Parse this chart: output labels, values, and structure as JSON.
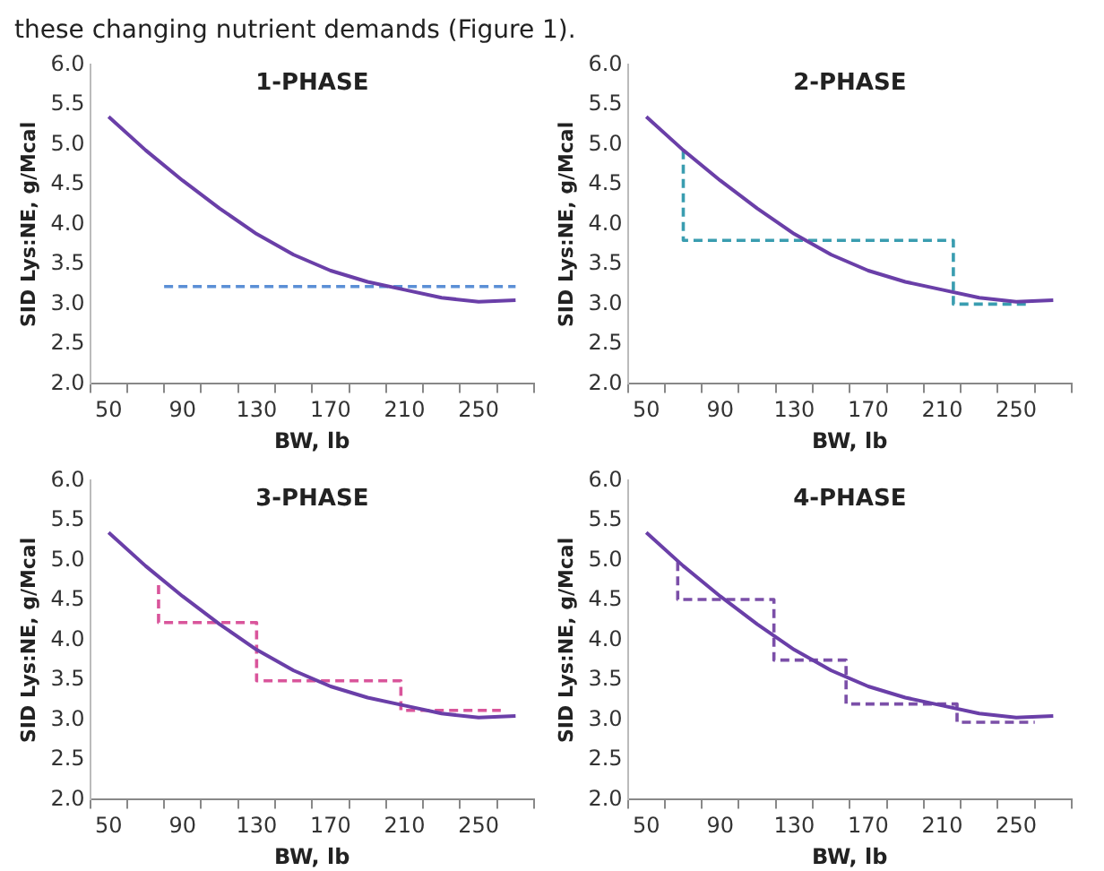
{
  "chart_data": [
    {
      "type": "line",
      "title": "1-PHASE",
      "xlabel": "BW, lb",
      "ylabel": "SID Lys:NE, g/Mcal",
      "annotations": [
        "these changing nutrient demands (Figure 1)."
      ],
      "xlim": [
        40,
        280
      ],
      "xticks": [
        {
          "value": 40,
          "label": null
        },
        50,
        {
          "value": 60,
          "label": null
        },
        {
          "value": 80,
          "label": null
        },
        90,
        {
          "value": 100,
          "label": null
        },
        {
          "value": 120,
          "label": null
        },
        130,
        {
          "value": 140,
          "label": null
        },
        {
          "value": 160,
          "label": null
        },
        170,
        {
          "value": 180,
          "label": null
        },
        {
          "value": 200,
          "label": null
        },
        210,
        {
          "value": 220,
          "label": null
        },
        {
          "value": 240,
          "label": null
        },
        250,
        {
          "value": 260,
          "label": null
        },
        {
          "value": 280,
          "label": null
        }
      ],
      "ylim": [
        2,
        6
      ],
      "yticks": [
        {
          "value": 2,
          "label": "2.0"
        },
        {
          "value": 2.5,
          "label": "2.5"
        },
        {
          "value": 3,
          "label": "3.0"
        },
        {
          "value": 3.5,
          "label": "3.5"
        },
        {
          "value": 4,
          "label": "4.0"
        },
        {
          "value": 4.5,
          "label": "4.5"
        },
        {
          "value": 5,
          "label": "5.0"
        },
        {
          "value": 5.5,
          "label": "5.5"
        },
        {
          "value": 6,
          "label": "6.0"
        }
      ],
      "grid": false,
      "marker": "none",
      "series": [
        {
          "color": "#6a3fa8",
          "line_style": "solid",
          "x": [
            50,
            70,
            90,
            110,
            130,
            150,
            170,
            190,
            210,
            230,
            250,
            270
          ],
          "values": [
            5.35,
            4.93,
            4.55,
            4.2,
            3.88,
            3.62,
            3.42,
            3.28,
            3.18,
            3.08,
            3.03,
            3.05
          ]
        },
        {
          "color": "#5b8fd6",
          "line_style": "dashed",
          "x": [
            80,
            270
          ],
          "values": [
            3.22,
            3.22
          ]
        }
      ]
    },
    {
      "type": "line",
      "title": "2-PHASE",
      "xlabel": "BW, lb",
      "ylabel": "SID Lys:NE, g/Mcal",
      "xlim": [
        40,
        280
      ],
      "xticks": [
        {
          "value": 40,
          "label": null
        },
        50,
        {
          "value": 60,
          "label": null
        },
        {
          "value": 80,
          "label": null
        },
        90,
        {
          "value": 100,
          "label": null
        },
        {
          "value": 120,
          "label": null
        },
        130,
        {
          "value": 140,
          "label": null
        },
        {
          "value": 160,
          "label": null
        },
        170,
        {
          "value": 180,
          "label": null
        },
        {
          "value": 200,
          "label": null
        },
        210,
        {
          "value": 220,
          "label": null
        },
        {
          "value": 240,
          "label": null
        },
        250,
        {
          "value": 260,
          "label": null
        },
        {
          "value": 280,
          "label": null
        }
      ],
      "ylim": [
        2,
        6
      ],
      "yticks": [
        {
          "value": 2,
          "label": "2.0"
        },
        {
          "value": 2.5,
          "label": "2.5"
        },
        {
          "value": 3,
          "label": "3.0"
        },
        {
          "value": 3.5,
          "label": "3.5"
        },
        {
          "value": 4,
          "label": "4.0"
        },
        {
          "value": 4.5,
          "label": "4.5"
        },
        {
          "value": 5,
          "label": "5.0"
        },
        {
          "value": 5.5,
          "label": "5.5"
        },
        {
          "value": 6,
          "label": "6.0"
        }
      ],
      "grid": false,
      "marker": "none",
      "series": [
        {
          "color": "#6a3fa8",
          "line_style": "solid",
          "x": [
            50,
            70,
            90,
            110,
            130,
            150,
            170,
            190,
            210,
            230,
            250,
            270
          ],
          "values": [
            5.35,
            4.93,
            4.55,
            4.2,
            3.88,
            3.62,
            3.42,
            3.28,
            3.18,
            3.08,
            3.03,
            3.05
          ]
        },
        {
          "color": "#3a9db0",
          "line_style": "dashed",
          "x": [
            70,
            70,
            216,
            216,
            257
          ],
          "values": [
            4.93,
            3.8,
            3.8,
            3.0,
            3.0
          ]
        }
      ]
    },
    {
      "type": "line",
      "title": "3-PHASE",
      "xlabel": "BW, lb",
      "ylabel": "SID Lys:NE, g/Mcal",
      "xlim": [
        40,
        280
      ],
      "xticks": [
        {
          "value": 40,
          "label": null
        },
        50,
        {
          "value": 60,
          "label": null
        },
        {
          "value": 80,
          "label": null
        },
        90,
        {
          "value": 100,
          "label": null
        },
        {
          "value": 120,
          "label": null
        },
        130,
        {
          "value": 140,
          "label": null
        },
        {
          "value": 160,
          "label": null
        },
        170,
        {
          "value": 180,
          "label": null
        },
        {
          "value": 200,
          "label": null
        },
        210,
        {
          "value": 220,
          "label": null
        },
        {
          "value": 240,
          "label": null
        },
        250,
        {
          "value": 260,
          "label": null
        },
        {
          "value": 280,
          "label": null
        }
      ],
      "ylim": [
        2,
        6
      ],
      "yticks": [
        {
          "value": 2,
          "label": "2.0"
        },
        {
          "value": 2.5,
          "label": "2.5"
        },
        {
          "value": 3,
          "label": "3.0"
        },
        {
          "value": 3.5,
          "label": "3.5"
        },
        {
          "value": 4,
          "label": "4.0"
        },
        {
          "value": 4.5,
          "label": "4.5"
        },
        {
          "value": 5,
          "label": "5.0"
        },
        {
          "value": 5.5,
          "label": "5.5"
        },
        {
          "value": 6,
          "label": "6.0"
        }
      ],
      "grid": false,
      "marker": "none",
      "series": [
        {
          "color": "#6a3fa8",
          "line_style": "solid",
          "x": [
            50,
            70,
            90,
            110,
            130,
            150,
            170,
            190,
            210,
            230,
            250,
            270
          ],
          "values": [
            5.35,
            4.93,
            4.55,
            4.2,
            3.88,
            3.62,
            3.42,
            3.28,
            3.18,
            3.08,
            3.03,
            3.05
          ]
        },
        {
          "color": "#d9559b",
          "line_style": "dashed",
          "x": [
            77,
            77,
            130,
            130,
            208,
            208,
            262
          ],
          "values": [
            4.69,
            4.22,
            4.22,
            3.49,
            3.49,
            3.12,
            3.12
          ]
        }
      ]
    },
    {
      "type": "line",
      "title": "4-PHASE",
      "xlabel": "BW, lb",
      "ylabel": "SID Lys:NE, g/Mcal",
      "xlim": [
        40,
        280
      ],
      "xticks": [
        {
          "value": 40,
          "label": null
        },
        50,
        {
          "value": 60,
          "label": null
        },
        {
          "value": 80,
          "label": null
        },
        90,
        {
          "value": 100,
          "label": null
        },
        {
          "value": 120,
          "label": null
        },
        130,
        {
          "value": 140,
          "label": null
        },
        {
          "value": 160,
          "label": null
        },
        170,
        {
          "value": 180,
          "label": null
        },
        {
          "value": 200,
          "label": null
        },
        210,
        {
          "value": 220,
          "label": null
        },
        {
          "value": 240,
          "label": null
        },
        250,
        {
          "value": 260,
          "label": null
        },
        {
          "value": 280,
          "label": null
        }
      ],
      "ylim": [
        2,
        6
      ],
      "yticks": [
        {
          "value": 2,
          "label": "2.0"
        },
        {
          "value": 2.5,
          "label": "2.5"
        },
        {
          "value": 3,
          "label": "3.0"
        },
        {
          "value": 3.5,
          "label": "3.5"
        },
        {
          "value": 4,
          "label": "4.0"
        },
        {
          "value": 4.5,
          "label": "4.5"
        },
        {
          "value": 5,
          "label": "5.0"
        },
        {
          "value": 5.5,
          "label": "5.5"
        },
        {
          "value": 6,
          "label": "6.0"
        }
      ],
      "grid": false,
      "marker": "none",
      "series": [
        {
          "color": "#6a3fa8",
          "line_style": "solid",
          "x": [
            50,
            70,
            90,
            110,
            130,
            150,
            170,
            190,
            210,
            230,
            250,
            270
          ],
          "values": [
            5.35,
            4.93,
            4.55,
            4.2,
            3.88,
            3.62,
            3.42,
            3.28,
            3.18,
            3.08,
            3.03,
            3.05
          ]
        },
        {
          "color": "#7b4fa8",
          "line_style": "dashed",
          "x": [
            67,
            67,
            119,
            119,
            158,
            158,
            218,
            218,
            260
          ],
          "values": [
            4.98,
            4.51,
            4.51,
            3.75,
            3.75,
            3.2,
            3.2,
            2.97,
            2.97
          ]
        }
      ]
    }
  ]
}
